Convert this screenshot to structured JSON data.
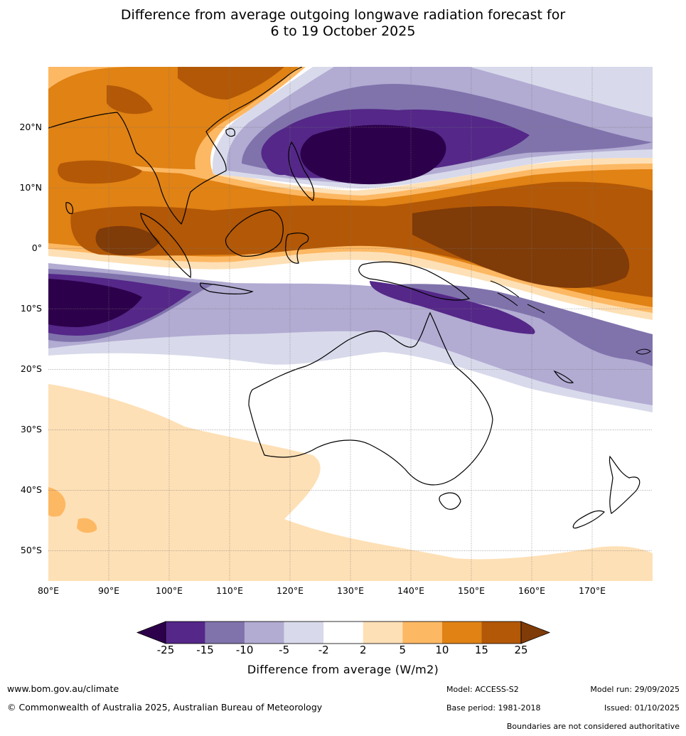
{
  "title": {
    "line1": "Difference from average outgoing longwave radiation forecast for",
    "line2": "6 to 19 October 2025"
  },
  "map": {
    "lon_range": [
      80,
      180
    ],
    "lat_range": [
      -55,
      30
    ],
    "lat_labels": [
      "20°N",
      "10°N",
      "0°",
      "10°S",
      "20°S",
      "30°S",
      "40°S",
      "50°S"
    ],
    "lon_labels": [
      "80°E",
      "90°E",
      "100°E",
      "110°E",
      "120°E",
      "130°E",
      "140°E",
      "150°E",
      "160°E",
      "170°E"
    ]
  },
  "colorbar": {
    "ticks": [
      "-25",
      "-15",
      "-10",
      "-5",
      "-2",
      "2",
      "5",
      "10",
      "15",
      "25"
    ],
    "colors": [
      "#2d004b",
      "#542788",
      "#8073ac",
      "#b2abd2",
      "#d8daeb",
      "#ffffff",
      "#fee0b6",
      "#fdb863",
      "#e08214",
      "#b35806",
      "#7f3b08"
    ],
    "axis_label": "Difference from average (W/m2)"
  },
  "footer": {
    "website": "www.bom.gov.au/climate",
    "copyright": "© Commonwealth of Australia 2025, Australian Bureau of Meteorology",
    "model": "Model: ACCESS-S2",
    "base_period": "Base period: 1981-2018",
    "model_run": "Model run: 29/09/2025",
    "issued": "Issued: 01/10/2025",
    "disclaimer": "Boundaries are not considered authoritative"
  }
}
